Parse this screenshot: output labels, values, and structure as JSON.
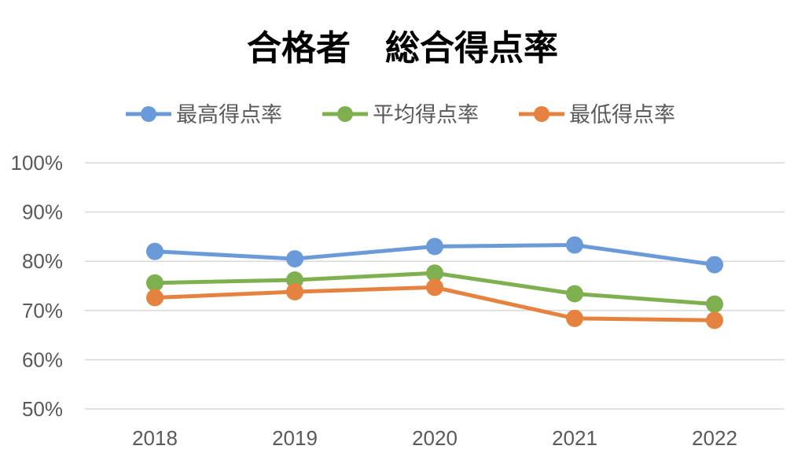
{
  "chart_data": {
    "type": "line",
    "title": "合格者　総合得点率",
    "categories": [
      "2018",
      "2019",
      "2020",
      "2021",
      "2022"
    ],
    "y_ticks": [
      "50%",
      "60%",
      "70%",
      "80%",
      "90%",
      "100%"
    ],
    "ylim": [
      50,
      100
    ],
    "grid": true,
    "legend_position": "top",
    "series": [
      {
        "name": "最高得点率",
        "color": "#6a9bd8",
        "values": [
          82.0,
          80.5,
          83.0,
          83.3,
          79.3
        ]
      },
      {
        "name": "平均得点率",
        "color": "#7fb04f",
        "values": [
          75.6,
          76.2,
          77.6,
          73.4,
          71.3
        ]
      },
      {
        "name": "最低得点率",
        "color": "#e6823f",
        "values": [
          72.6,
          73.8,
          74.7,
          68.4,
          68.0
        ]
      }
    ]
  }
}
